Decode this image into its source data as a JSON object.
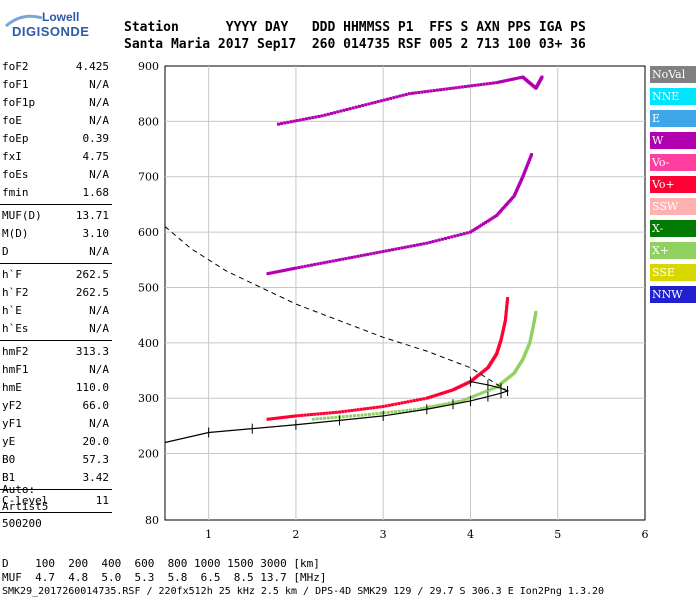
{
  "logo": {
    "line1": "Lowell",
    "line2": "DIGISONDE"
  },
  "header": {
    "row1": "Station      YYYY DAY   DDD HHMMSS P1  FFS S AXN PPS IGA PS",
    "row2": "Santa Maria 2017 Sep17  260 014735 RSF 005 2 713 100 03+ 36"
  },
  "params": {
    "group1": [
      {
        "name": "foF2",
        "value": "4.425"
      },
      {
        "name": "foF1",
        "value": "N/A"
      },
      {
        "name": "foF1p",
        "value": "N/A"
      },
      {
        "name": "foE",
        "value": "N/A"
      },
      {
        "name": "foEp",
        "value": "0.39"
      },
      {
        "name": "fxI",
        "value": "4.75"
      },
      {
        "name": "foEs",
        "value": "N/A"
      },
      {
        "name": "fmin",
        "value": "1.68"
      }
    ],
    "group2": [
      {
        "name": "MUF(D)",
        "value": "13.71"
      },
      {
        "name": "M(D)",
        "value": "3.10"
      },
      {
        "name": "D",
        "value": "N/A"
      }
    ],
    "group3": [
      {
        "name": "h`F",
        "value": "262.5"
      },
      {
        "name": "h`F2",
        "value": "262.5"
      },
      {
        "name": "h`E",
        "value": "N/A"
      },
      {
        "name": "h`Es",
        "value": "N/A"
      }
    ],
    "group4": [
      {
        "name": "hmF2",
        "value": "313.3"
      },
      {
        "name": "hmF1",
        "value": "N/A"
      },
      {
        "name": "hmE",
        "value": "110.0"
      },
      {
        "name": "yF2",
        "value": "66.0"
      },
      {
        "name": "yF1",
        "value": "N/A"
      },
      {
        "name": "yE",
        "value": "20.0"
      },
      {
        "name": "B0",
        "value": "57.3"
      },
      {
        "name": "B1",
        "value": "3.42"
      }
    ],
    "group5": [
      {
        "name": "C-level",
        "value": "11"
      }
    ]
  },
  "auto": {
    "line1": "Auto:",
    "line2": "Artist5",
    "line3": "500200"
  },
  "legend": [
    {
      "label": "NoVal",
      "bg": "#808080",
      "fg": "#ffffff"
    },
    {
      "label": "NNE",
      "bg": "#00e5ff",
      "fg": "#ffffff"
    },
    {
      "label": "E",
      "bg": "#3ea6e8",
      "fg": "#ffffff"
    },
    {
      "label": "W",
      "bg": "#b000b0",
      "fg": "#ffffff"
    },
    {
      "label": "Vo-",
      "bg": "#ff3fa0",
      "fg": "#ffffff"
    },
    {
      "label": "Vo+",
      "bg": "#ff0033",
      "fg": "#ffffff"
    },
    {
      "label": "SSW",
      "bg": "#ffb0b0",
      "fg": "#ffffff"
    },
    {
      "label": "X-",
      "bg": "#007a00",
      "fg": "#ffffff"
    },
    {
      "label": "X+",
      "bg": "#90d060",
      "fg": "#ffffff"
    },
    {
      "label": "SSE",
      "bg": "#d8d800",
      "fg": "#ffffff"
    },
    {
      "label": "NNW",
      "bg": "#2020d0",
      "fg": "#ffffff"
    }
  ],
  "footer": {
    "row1": "D    100  200  400  600  800 1000 1500 3000 [km]",
    "row2": "MUF  4.7  4.8  5.0  5.3  5.8  6.5  8.5 13.7 [MHz]",
    "row3": "SMK29_2017260014735.RSF / 220fx512h 25 kHz 2.5 km / DPS-4D SMK29 129 / 29.7 S 306.3 E Ion2Png 1.3.20"
  },
  "chart_data": {
    "type": "scatter",
    "xlim": [
      0.5,
      6.0
    ],
    "ylim": [
      80,
      900
    ],
    "xticks": [
      1,
      2,
      3,
      4,
      5,
      6
    ],
    "yticks": [
      80,
      200,
      300,
      400,
      500,
      600,
      700,
      800,
      900
    ],
    "grid": true,
    "series": [
      {
        "name": "Vo+",
        "color": "#ff0033",
        "x": [
          1.68,
          2.0,
          2.5,
          3.0,
          3.5,
          3.8,
          4.0,
          4.2,
          4.3,
          4.35,
          4.4,
          4.425
        ],
        "y": [
          262,
          268,
          275,
          285,
          300,
          315,
          330,
          355,
          380,
          405,
          440,
          480
        ]
      },
      {
        "name": "X+",
        "color": "#90d060",
        "x": [
          2.2,
          2.8,
          3.4,
          3.9,
          4.3,
          4.5,
          4.6,
          4.68,
          4.72,
          4.75
        ],
        "y": [
          262,
          270,
          280,
          295,
          320,
          345,
          370,
          400,
          430,
          455
        ]
      },
      {
        "name": "W",
        "color": "#b000b0",
        "x": [
          1.68,
          2.0,
          2.5,
          3.0,
          3.5,
          4.0,
          4.3,
          4.5,
          4.6,
          4.7
        ],
        "y": [
          525,
          535,
          550,
          565,
          580,
          600,
          630,
          665,
          700,
          740
        ]
      },
      {
        "name": "W",
        "color": "#b000b0",
        "x": [
          1.8,
          2.3,
          2.8,
          3.3,
          3.8,
          4.3,
          4.6,
          4.75,
          4.82
        ],
        "y": [
          795,
          810,
          830,
          850,
          860,
          870,
          880,
          860,
          880
        ]
      }
    ],
    "profile": {
      "x": [
        0.5,
        1.0,
        1.5,
        2.0,
        2.5,
        3.0,
        3.5,
        3.8,
        4.0,
        4.2,
        4.35,
        4.425,
        4.35,
        4.2,
        4.0
      ],
      "y": [
        220,
        238,
        245,
        252,
        260,
        268,
        280,
        289,
        295,
        303,
        309,
        313,
        318,
        324,
        330
      ]
    },
    "d_profile": {
      "x": [
        0.5,
        0.8,
        1.2,
        1.6,
        2.0,
        2.5,
        3.0,
        3.5,
        4.0,
        4.425
      ],
      "y": [
        610,
        570,
        530,
        500,
        470,
        440,
        410,
        385,
        355,
        313
      ]
    }
  }
}
